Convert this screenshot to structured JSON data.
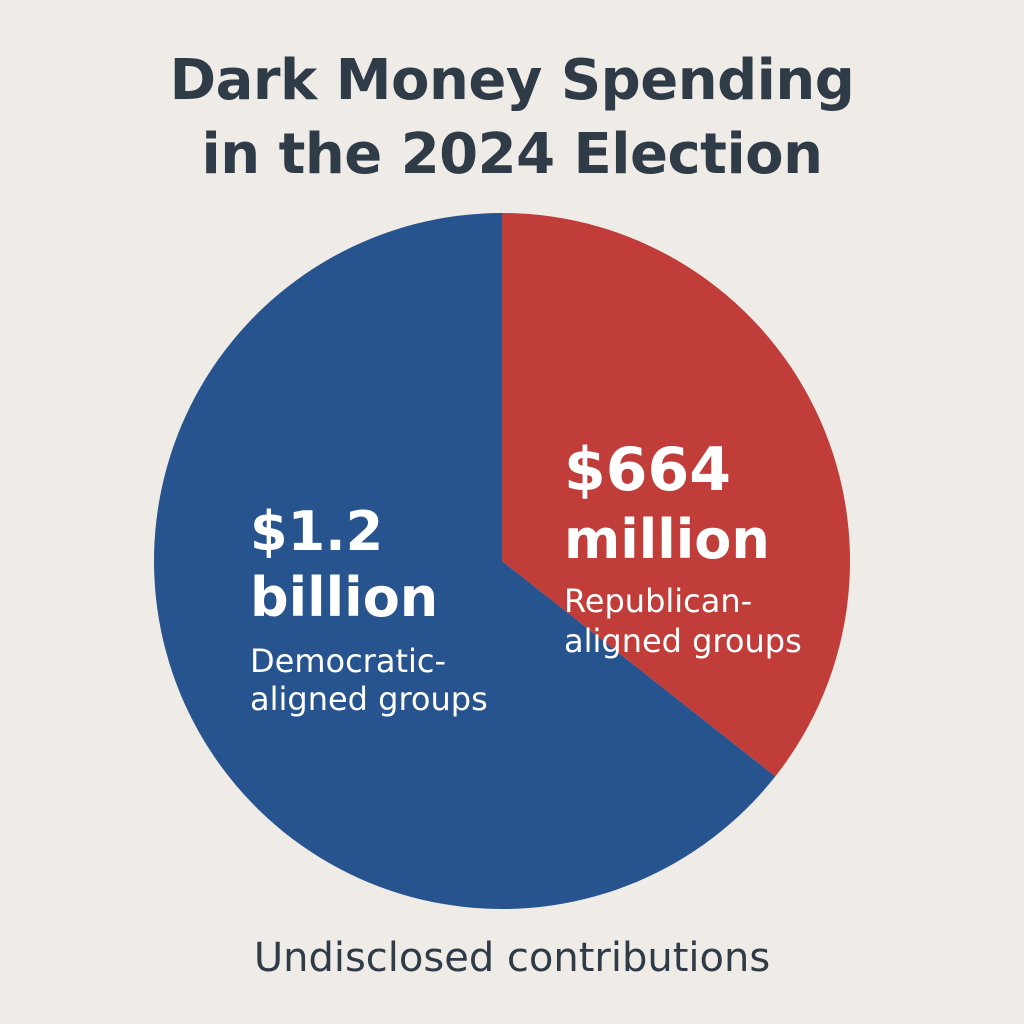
{
  "chart_data": {
    "type": "pie",
    "title_lines": [
      "Dark Money Spending",
      "in the 2024 Election"
    ],
    "caption": "Undisclosed contributions",
    "unit": "USD",
    "slices": [
      {
        "value": 1200000000,
        "value_lines": [
          "$1.2",
          "billion"
        ],
        "label_lines": [
          "Democratic-",
          "aligned groups"
        ],
        "color": "#27548f"
      },
      {
        "value": 664000000,
        "value_lines": [
          "$664",
          "million"
        ],
        "label_lines": [
          "Republican-",
          "aligned groups"
        ],
        "color": "#c13d3a"
      }
    ]
  }
}
